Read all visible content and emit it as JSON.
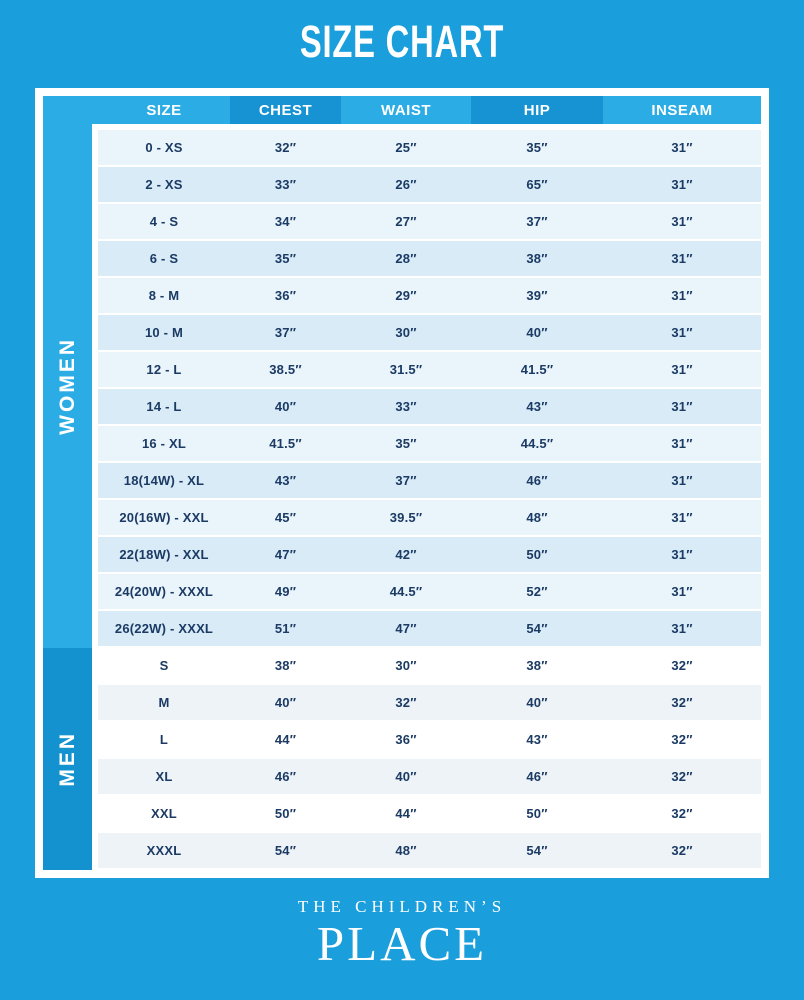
{
  "title": "SIZE CHART",
  "table": {
    "headers": [
      "SIZE",
      "CHEST",
      "WAIST",
      "HIP",
      "INSEAM"
    ],
    "sections": [
      {
        "label": "WOMEN",
        "rows": [
          [
            "0 - XS",
            "32″",
            "25″",
            "35″",
            "31″"
          ],
          [
            "2 - XS",
            "33″",
            "26″",
            "65″",
            "31″"
          ],
          [
            "4 - S",
            "34″",
            "27″",
            "37″",
            "31″"
          ],
          [
            "6 - S",
            "35″",
            "28″",
            "38″",
            "31″"
          ],
          [
            "8 - M",
            "36″",
            "29″",
            "39″",
            "31″"
          ],
          [
            "10 - M",
            "37″",
            "30″",
            "40″",
            "31″"
          ],
          [
            "12 - L",
            "38.5″",
            "31.5″",
            "41.5″",
            "31″"
          ],
          [
            "14 - L",
            "40″",
            "33″",
            "43″",
            "31″"
          ],
          [
            "16 - XL",
            "41.5″",
            "35″",
            "44.5″",
            "31″"
          ],
          [
            "18(14W) - XL",
            "43″",
            "37″",
            "46″",
            "31″"
          ],
          [
            "20(16W) - XXL",
            "45″",
            "39.5″",
            "48″",
            "31″"
          ],
          [
            "22(18W) - XXL",
            "47″",
            "42″",
            "50″",
            "31″"
          ],
          [
            "24(20W) - XXXL",
            "49″",
            "44.5″",
            "52″",
            "31″"
          ],
          [
            "26(22W) - XXXL",
            "51″",
            "47″",
            "54″",
            "31″"
          ]
        ]
      },
      {
        "label": "MEN",
        "rows": [
          [
            "S",
            "38″",
            "30″",
            "38″",
            "32″"
          ],
          [
            "M",
            "40″",
            "32″",
            "40″",
            "32″"
          ],
          [
            "L",
            "44″",
            "36″",
            "43″",
            "32″"
          ],
          [
            "XL",
            "46″",
            "40″",
            "46″",
            "32″"
          ],
          [
            "XXL",
            "50″",
            "44″",
            "50″",
            "32″"
          ],
          [
            "XXXL",
            "54″",
            "48″",
            "54″",
            "32″"
          ]
        ]
      }
    ]
  },
  "footer": {
    "brand_top": "THE CHILDREN’S",
    "brand_bottom": "PLACE"
  },
  "colors": {
    "background": "#1A9FDC",
    "band_women": "#2BACE4",
    "band_men": "#1392CF",
    "header_light": "#2BACE4",
    "header_dark": "#1793D3",
    "row_women_light": "#E9F4FB",
    "row_women_dark": "#D8EBF7",
    "row_men_light": "#FFFFFF",
    "row_men_dark": "#EEF3F7",
    "text_ink": "#1B3A64"
  }
}
